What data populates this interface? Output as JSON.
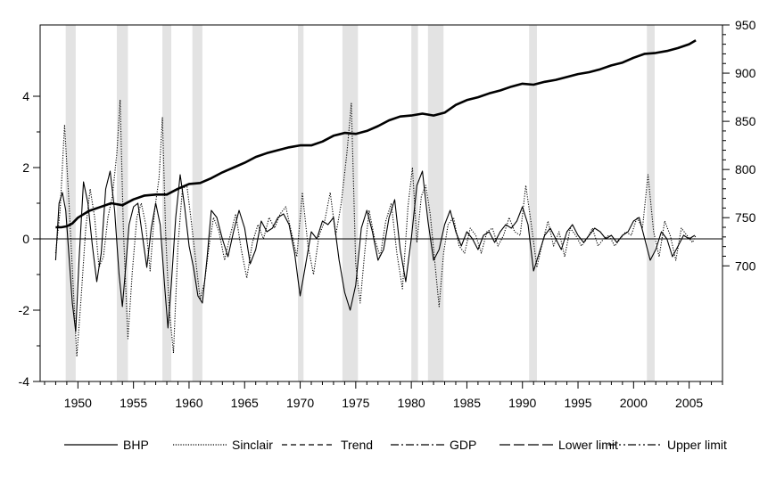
{
  "chart_data": {
    "type": "line",
    "title": "",
    "xlabel": "",
    "ylabel": "",
    "right_ylabel": "",
    "x_range": [
      1946.6,
      2008.0
    ],
    "x_ticks": [
      1950,
      1955,
      1960,
      1965,
      1970,
      1975,
      1980,
      1985,
      1990,
      1995,
      2000,
      2005
    ],
    "left_axis": {
      "range": [
        -4,
        6.0
      ],
      "ticks": [
        -4,
        -2,
        0,
        2,
        4
      ]
    },
    "right_axis": {
      "range": [
        580,
        950
      ],
      "ticks": [
        700,
        750,
        800,
        850,
        900,
        950
      ]
    },
    "grid": false,
    "zero_line": true,
    "legend_placement": "bottom",
    "recession_shading": [
      [
        1948.9,
        1949.8
      ],
      [
        1953.5,
        1954.5
      ],
      [
        1957.6,
        1958.4
      ],
      [
        1960.3,
        1961.2
      ],
      [
        1969.8,
        1970.3
      ],
      [
        1973.8,
        1975.2
      ],
      [
        1980.0,
        1980.6
      ],
      [
        1981.5,
        1982.9
      ],
      [
        1990.6,
        1991.3
      ],
      [
        2001.2,
        2001.9
      ]
    ],
    "series": [
      {
        "name": "BHP",
        "style": "solid",
        "axis": "left",
        "x": [
          1948.0,
          1948.3,
          1948.6,
          1948.9,
          1949.2,
          1949.5,
          1949.8,
          1950.1,
          1950.5,
          1950.9,
          1951.3,
          1951.7,
          1952.1,
          1952.5,
          1952.9,
          1953.3,
          1953.7,
          1954.0,
          1954.3,
          1954.6,
          1955.0,
          1955.4,
          1955.8,
          1956.2,
          1956.6,
          1957.0,
          1957.4,
          1957.8,
          1958.1,
          1958.4,
          1958.8,
          1959.2,
          1959.6,
          1960.0,
          1960.4,
          1960.8,
          1961.2,
          1961.6,
          1962.0,
          1962.5,
          1963.0,
          1963.5,
          1964.0,
          1964.5,
          1965.0,
          1965.5,
          1966.0,
          1966.5,
          1967.0,
          1967.5,
          1968.0,
          1968.5,
          1969.0,
          1969.5,
          1970.0,
          1970.5,
          1971.0,
          1971.5,
          1972.0,
          1972.5,
          1973.0,
          1973.5,
          1974.0,
          1974.5,
          1975.0,
          1975.5,
          1976.0,
          1976.5,
          1977.0,
          1977.5,
          1978.0,
          1978.5,
          1979.0,
          1979.5,
          1980.0,
          1980.5,
          1981.0,
          1981.5,
          1982.0,
          1982.5,
          1983.0,
          1983.5,
          1984.0,
          1984.5,
          1985.0,
          1985.5,
          1986.0,
          1986.5,
          1987.0,
          1987.5,
          1988.0,
          1988.5,
          1989.0,
          1989.5,
          1990.0,
          1990.5,
          1991.0,
          1991.5,
          1992.0,
          1992.5,
          1993.0,
          1993.5,
          1994.0,
          1994.5,
          1995.0,
          1995.5,
          1996.0,
          1996.5,
          1997.0,
          1997.5,
          1998.0,
          1998.5,
          1999.0,
          1999.5,
          2000.0,
          2000.5,
          2001.0,
          2001.5,
          2002.0,
          2002.5,
          2003.0,
          2003.5,
          2004.0,
          2004.5,
          2005.0,
          2005.5
        ],
        "values": [
          -0.6,
          1.0,
          1.3,
          0.8,
          -0.5,
          -1.8,
          -2.6,
          -0.6,
          1.6,
          1.0,
          -0.2,
          -1.2,
          -0.4,
          1.4,
          1.9,
          0.8,
          -1.0,
          -1.9,
          -0.8,
          0.4,
          0.9,
          1.0,
          0.1,
          -0.8,
          0.3,
          1.0,
          0.4,
          -1.3,
          -2.5,
          -1.3,
          0.6,
          1.8,
          0.9,
          -0.2,
          -0.8,
          -1.6,
          -1.8,
          -0.6,
          0.8,
          0.6,
          0.0,
          -0.5,
          0.2,
          0.8,
          0.3,
          -0.7,
          -0.3,
          0.5,
          0.2,
          0.3,
          0.6,
          0.7,
          0.4,
          -0.4,
          -1.6,
          -0.7,
          0.2,
          0.0,
          0.5,
          0.4,
          0.6,
          -0.6,
          -1.5,
          -2.0,
          -1.3,
          0.3,
          0.8,
          0.2,
          -0.6,
          -0.3,
          0.6,
          1.1,
          -0.3,
          -1.2,
          0.0,
          1.5,
          1.9,
          0.5,
          -0.6,
          -0.3,
          0.4,
          0.8,
          0.2,
          -0.2,
          0.2,
          0.0,
          -0.3,
          0.1,
          0.2,
          -0.1,
          0.2,
          0.4,
          0.3,
          0.5,
          0.9,
          0.4,
          -0.9,
          -0.4,
          0.1,
          0.3,
          0.0,
          -0.3,
          0.2,
          0.4,
          0.1,
          -0.1,
          0.1,
          0.3,
          0.2,
          0.0,
          0.1,
          -0.1,
          0.1,
          0.2,
          0.5,
          0.6,
          0.0,
          -0.6,
          -0.3,
          0.2,
          0.0,
          -0.5,
          -0.2,
          0.1,
          0.0,
          0.1
        ]
      },
      {
        "name": "Sinclair",
        "style": "dotted",
        "axis": "left",
        "x": [
          1948.0,
          1948.4,
          1948.8,
          1949.2,
          1949.6,
          1949.9,
          1950.3,
          1950.7,
          1951.1,
          1951.5,
          1951.9,
          1952.3,
          1952.7,
          1953.1,
          1953.5,
          1953.8,
          1954.1,
          1954.5,
          1954.9,
          1955.3,
          1955.7,
          1956.1,
          1956.5,
          1956.9,
          1957.3,
          1957.6,
          1957.9,
          1958.2,
          1958.6,
          1959.0,
          1959.4,
          1959.8,
          1960.2,
          1960.6,
          1961.0,
          1961.4,
          1961.8,
          1962.2,
          1962.7,
          1963.2,
          1963.7,
          1964.2,
          1964.7,
          1965.2,
          1965.7,
          1966.2,
          1966.7,
          1967.2,
          1967.7,
          1968.2,
          1968.7,
          1969.2,
          1969.7,
          1970.2,
          1970.7,
          1971.2,
          1971.7,
          1972.2,
          1972.7,
          1973.2,
          1973.7,
          1974.2,
          1974.6,
          1975.0,
          1975.4,
          1975.8,
          1976.2,
          1976.7,
          1977.2,
          1977.7,
          1978.2,
          1978.7,
          1979.2,
          1979.7,
          1980.1,
          1980.5,
          1980.9,
          1981.3,
          1981.7,
          1982.1,
          1982.5,
          1982.9,
          1983.3,
          1983.8,
          1984.3,
          1984.8,
          1985.3,
          1985.8,
          1986.3,
          1986.8,
          1987.3,
          1987.8,
          1988.3,
          1988.8,
          1989.3,
          1989.8,
          1990.3,
          1990.8,
          1991.3,
          1991.8,
          1992.3,
          1992.8,
          1993.3,
          1993.8,
          1994.3,
          1994.8,
          1995.3,
          1995.8,
          1996.3,
          1996.8,
          1997.3,
          1997.8,
          1998.3,
          1998.8,
          1999.3,
          1999.8,
          2000.3,
          2000.8,
          2001.3,
          2001.8,
          2002.3,
          2002.8,
          2003.3,
          2003.8,
          2004.3,
          2004.8,
          2005.3,
          2005.6
        ],
        "values": [
          -0.4,
          0.8,
          3.2,
          1.0,
          -1.5,
          -3.3,
          -1.6,
          0.3,
          1.4,
          0.6,
          -0.8,
          -0.5,
          0.6,
          1.2,
          2.4,
          3.9,
          0.2,
          -2.8,
          -0.9,
          0.6,
          1.0,
          0.4,
          -0.9,
          0.8,
          1.7,
          3.4,
          0.1,
          -1.9,
          -3.2,
          -0.2,
          1.4,
          1.5,
          0.5,
          -0.6,
          -1.7,
          -1.2,
          -0.2,
          0.6,
          0.2,
          -0.6,
          0.1,
          0.7,
          -0.3,
          -1.1,
          -0.1,
          0.4,
          0.0,
          0.6,
          0.3,
          0.7,
          0.9,
          0.2,
          -0.5,
          1.3,
          -0.2,
          -1.0,
          0.1,
          0.5,
          1.3,
          0.1,
          1.0,
          2.4,
          3.8,
          -0.7,
          -1.8,
          -0.4,
          0.8,
          0.0,
          -0.5,
          0.5,
          1.0,
          -0.4,
          -1.4,
          0.9,
          2.0,
          -0.1,
          1.2,
          1.5,
          0.7,
          -0.6,
          -1.9,
          -0.4,
          0.4,
          0.6,
          -0.2,
          -0.4,
          0.3,
          0.1,
          -0.4,
          0.2,
          0.3,
          -0.2,
          0.1,
          0.6,
          0.2,
          0.1,
          1.5,
          0.4,
          -0.8,
          -0.1,
          0.5,
          -0.2,
          0.2,
          -0.5,
          0.3,
          0.1,
          -0.2,
          0.0,
          0.3,
          -0.2,
          0.0,
          0.1,
          -0.2,
          0.0,
          0.2,
          0.1,
          0.6,
          0.3,
          1.8,
          0.2,
          -0.5,
          0.5,
          0.1,
          -0.6,
          0.3,
          0.1,
          -0.1,
          0.1
        ]
      },
      {
        "name": "Trend",
        "style": "dashed",
        "axis": "right",
        "x": [
          1948.0,
          1948.5,
          1949.0,
          1949.5,
          1950.0,
          1951.0,
          1952.0,
          1953.0,
          1953.5,
          1954.0,
          1955.0,
          1956.0,
          1957.0,
          1958.0,
          1959.0,
          1960.0,
          1961.0,
          1962.0,
          1963.0,
          1964.0,
          1965.0,
          1966.0,
          1967.0,
          1968.0,
          1969.0,
          1970.0,
          1971.0,
          1972.0,
          1973.0,
          1974.0,
          1975.0,
          1976.0,
          1977.0,
          1978.0,
          1979.0,
          1980.0,
          1981.0,
          1982.0,
          1983.0,
          1984.0,
          1985.0,
          1986.0,
          1987.0,
          1988.0,
          1989.0,
          1990.0,
          1991.0,
          1992.0,
          1993.0,
          1994.0,
          1995.0,
          1996.0,
          1997.0,
          1998.0,
          1999.0,
          2000.0,
          2001.0,
          2002.0,
          2003.0,
          2004.0,
          2005.0,
          2005.6
        ],
        "values": [
          740,
          740,
          741,
          744,
          750,
          757,
          761,
          765,
          764,
          763,
          769,
          773,
          774,
          774,
          780,
          785,
          786,
          791,
          797,
          802,
          807,
          813,
          817,
          820,
          823,
          825,
          825,
          829,
          835,
          838,
          837,
          840,
          845,
          851,
          855,
          856,
          858,
          856,
          859,
          867,
          872,
          875,
          879,
          882,
          886,
          889,
          888,
          891,
          893,
          896,
          899,
          901,
          904,
          908,
          911,
          916,
          920,
          921,
          923,
          926,
          930,
          934
        ]
      },
      {
        "name": "GDP",
        "style": "dash-dot",
        "axis": "left",
        "x": [],
        "values": []
      },
      {
        "name": "Lower limit",
        "style": "long-dash",
        "axis": "left",
        "x": [],
        "values": []
      },
      {
        "name": "Upper limit",
        "style": "dash-dot-dot",
        "axis": "left",
        "x": [],
        "values": []
      }
    ]
  }
}
